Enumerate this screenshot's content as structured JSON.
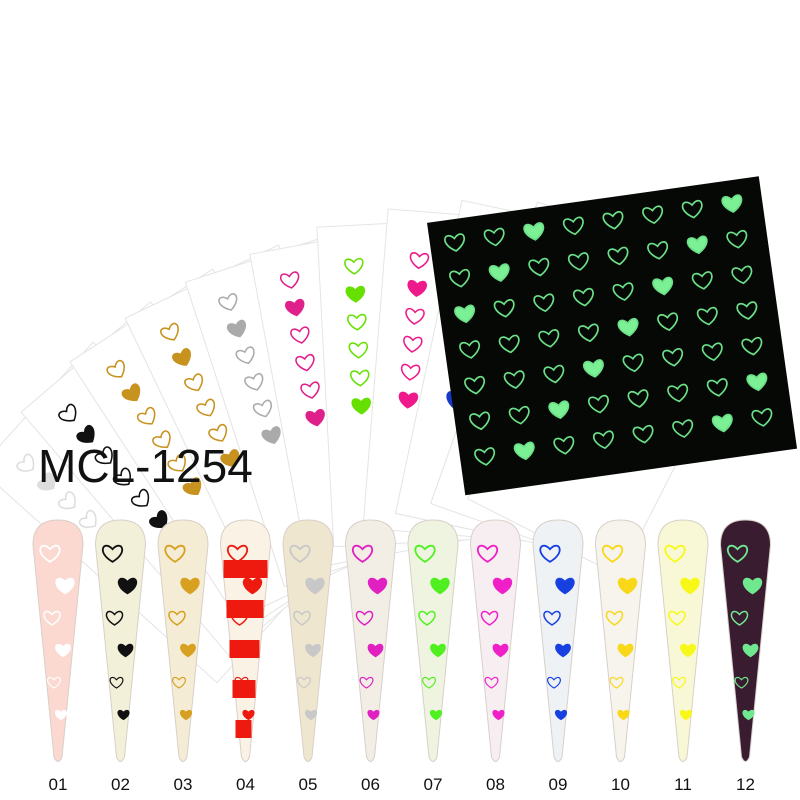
{
  "title": "MCL-1254",
  "labels": [
    "01",
    "02",
    "03",
    "04",
    "05",
    "06",
    "07",
    "08",
    "09",
    "10",
    "11",
    "12"
  ]
}
